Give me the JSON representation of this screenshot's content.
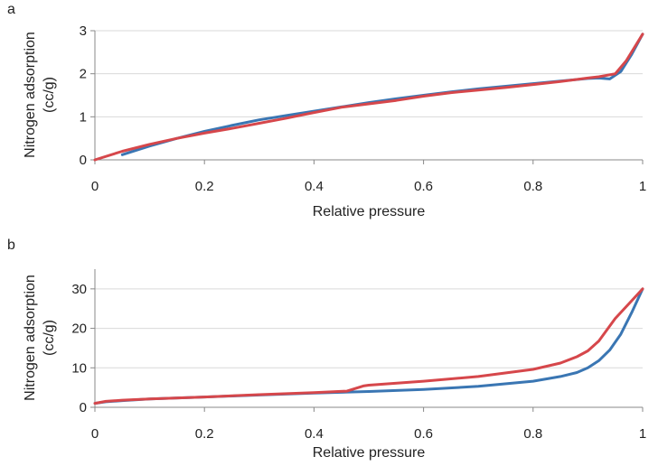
{
  "colors": {
    "series_1": "#3a76b3",
    "series_2": "#d6474b"
  },
  "chart_data": [
    {
      "panel_label": "a",
      "type": "line",
      "xlabel": "Relative pressure",
      "ylabel_lines": [
        "Nitrogen adsorption",
        "(cc/g)"
      ],
      "xlim": [
        0,
        1
      ],
      "ylim": [
        0,
        3
      ],
      "xticks": [
        0,
        0.2,
        0.4,
        0.6,
        0.8,
        1
      ],
      "xtick_labels": [
        "0",
        "0.2",
        "0.4",
        "0.6",
        "0.8",
        "1"
      ],
      "yticks": [
        0,
        1,
        2,
        3
      ],
      "ytick_labels": [
        "0",
        "1",
        "2",
        "3"
      ],
      "grid": "horizontal",
      "series": [
        {
          "color": "#3a76b3",
          "x": [
            0.05,
            0.1,
            0.15,
            0.2,
            0.25,
            0.3,
            0.35,
            0.4,
            0.45,
            0.5,
            0.55,
            0.6,
            0.65,
            0.7,
            0.75,
            0.8,
            0.85,
            0.9,
            0.92,
            0.94,
            0.96,
            0.98,
            1.0
          ],
          "y": [
            0.12,
            0.32,
            0.5,
            0.66,
            0.8,
            0.93,
            1.03,
            1.13,
            1.23,
            1.33,
            1.42,
            1.5,
            1.58,
            1.65,
            1.71,
            1.77,
            1.83,
            1.89,
            1.9,
            1.88,
            2.05,
            2.45,
            2.92
          ]
        },
        {
          "color": "#d6474b",
          "x": [
            0.0,
            0.05,
            0.1,
            0.15,
            0.2,
            0.25,
            0.3,
            0.35,
            0.4,
            0.45,
            0.5,
            0.55,
            0.6,
            0.65,
            0.7,
            0.75,
            0.8,
            0.85,
            0.9,
            0.92,
            0.95,
            0.97,
            1.0
          ],
          "y": [
            0.0,
            0.2,
            0.36,
            0.5,
            0.62,
            0.73,
            0.85,
            0.97,
            1.1,
            1.22,
            1.3,
            1.38,
            1.48,
            1.56,
            1.62,
            1.68,
            1.75,
            1.82,
            1.9,
            1.93,
            2.0,
            2.3,
            2.92
          ]
        }
      ]
    },
    {
      "panel_label": "b",
      "type": "line",
      "xlabel": "Relative pressure",
      "ylabel_lines": [
        "Nitrogen adsorption",
        "(cc/g)"
      ],
      "xlim": [
        0,
        1
      ],
      "ylim": [
        0,
        35
      ],
      "xticks": [
        0,
        0.2,
        0.4,
        0.6,
        0.8,
        1
      ],
      "xtick_labels": [
        "0",
        "0.2",
        "0.4",
        "0.6",
        "0.8",
        "1"
      ],
      "yticks": [
        0,
        10,
        20,
        30
      ],
      "ytick_labels": [
        "0",
        "10",
        "20",
        "30"
      ],
      "grid": "horizontal",
      "series": [
        {
          "color": "#3a76b3",
          "x": [
            0.0,
            0.02,
            0.05,
            0.1,
            0.2,
            0.3,
            0.4,
            0.5,
            0.6,
            0.7,
            0.8,
            0.85,
            0.88,
            0.9,
            0.92,
            0.94,
            0.96,
            0.98,
            1.0
          ],
          "y": [
            1.0,
            1.4,
            1.7,
            2.1,
            2.6,
            3.1,
            3.6,
            4.0,
            4.5,
            5.3,
            6.6,
            7.8,
            8.8,
            10.0,
            11.8,
            14.5,
            18.5,
            24.0,
            30.0
          ]
        },
        {
          "color": "#d6474b",
          "x": [
            0.0,
            0.02,
            0.05,
            0.1,
            0.2,
            0.3,
            0.4,
            0.46,
            0.49,
            0.5,
            0.6,
            0.7,
            0.8,
            0.85,
            0.88,
            0.9,
            0.92,
            0.95,
            0.98,
            1.0
          ],
          "y": [
            1.0,
            1.5,
            1.8,
            2.1,
            2.6,
            3.2,
            3.7,
            4.1,
            5.4,
            5.6,
            6.6,
            7.8,
            9.6,
            11.2,
            12.8,
            14.3,
            16.8,
            22.5,
            27.0,
            30.0
          ]
        }
      ]
    }
  ]
}
